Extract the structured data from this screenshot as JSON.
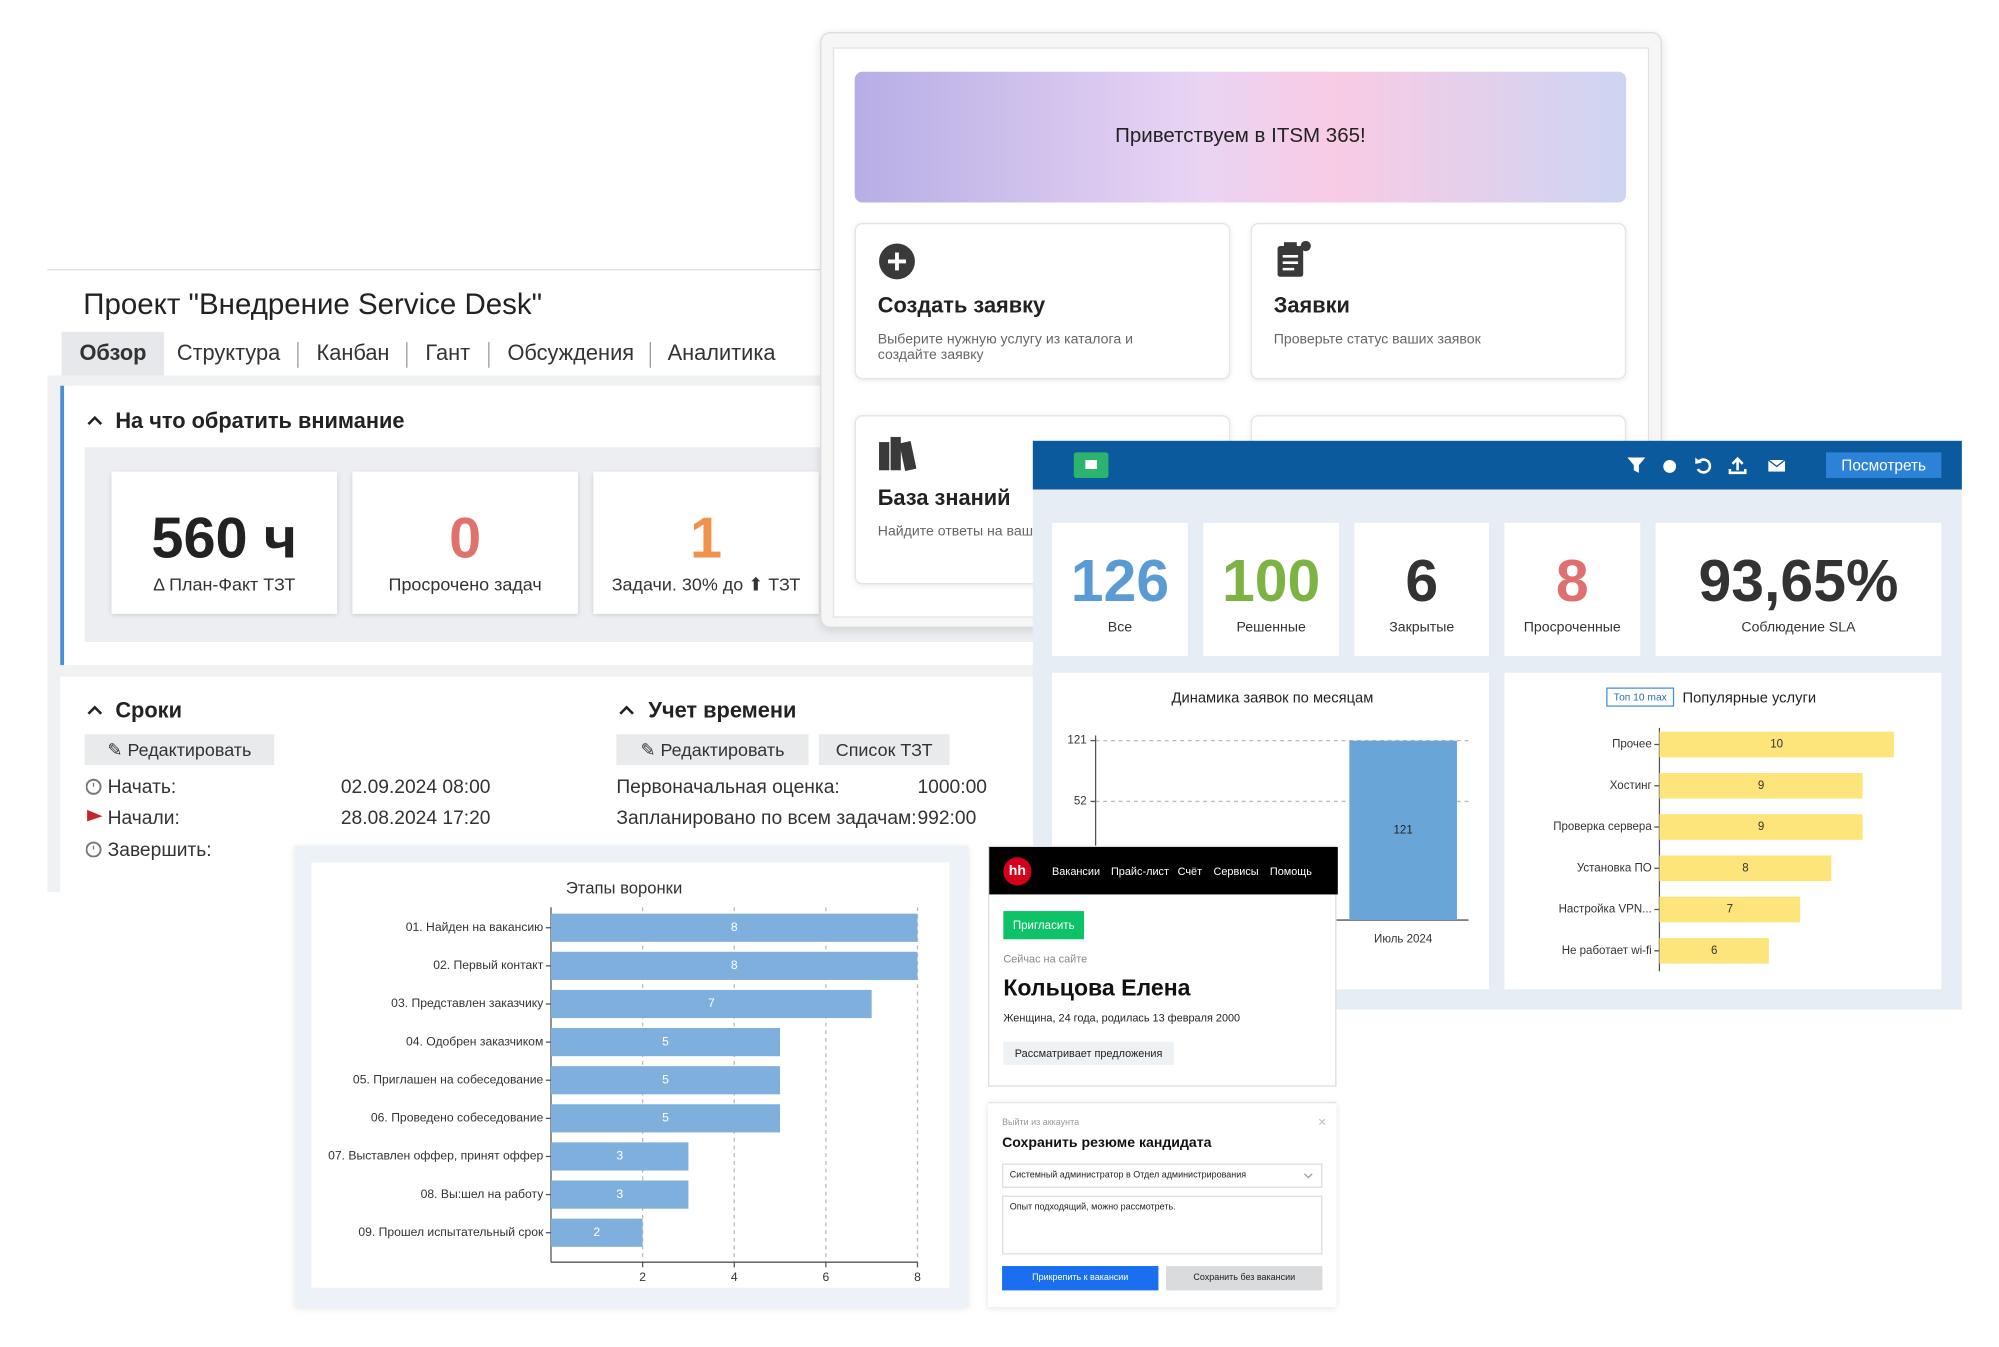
{
  "project": {
    "title": "Проект \"Внедрение Service Desk\"",
    "tabs": [
      "Обзор",
      "Структура",
      "Канбан",
      "Гант",
      "Обсуждения",
      "Аналитика"
    ],
    "attention": {
      "title": "На что обратить внимание",
      "cards": [
        {
          "value": "560 ч",
          "label": "Δ План-Факт ТЗТ"
        },
        {
          "value": "0",
          "label": "Просрочено задач"
        },
        {
          "value": "1",
          "label": "Задачи. 30% до ⬆ ТЗТ"
        }
      ]
    },
    "deadlines": {
      "title": "Сроки",
      "button": "Редактировать",
      "rows": [
        {
          "label": "Начать:",
          "value": "02.09.2024 08:00"
        },
        {
          "label": "Начали:",
          "value": "28.08.2024 17:20"
        },
        {
          "label": "Завершить:"
        }
      ]
    },
    "time": {
      "title": "Учет времени",
      "buttons": [
        "Редактировать",
        "Список ТЗТ"
      ],
      "rows": [
        {
          "label": "Первоначальная оценка:",
          "value": "1000:00"
        },
        {
          "label": "Запланировано по всем задачам:",
          "value": "992:00"
        }
      ]
    }
  },
  "itsm": {
    "banner": "Приветствуем в ITSM 365!",
    "cards": [
      {
        "title": "Создать заявку",
        "description": "Выберите нужную услугу из каталога и создайте заявку"
      },
      {
        "title": "Заявки",
        "description": "Проверьте статус ваших заявок"
      },
      {
        "title": "База знаний",
        "description": "Найдите ответы на ваш"
      }
    ]
  },
  "dashboard": {
    "view_button": "Посмотреть",
    "kpis": [
      {
        "value": "126",
        "label": "Все"
      },
      {
        "value": "100",
        "label": "Решенные"
      },
      {
        "value": "6",
        "label": "Закрытые"
      },
      {
        "value": "8",
        "label": "Просроченные"
      },
      {
        "value": "93,65%",
        "label": "Соблюдение SLA"
      }
    ]
  },
  "hh": {
    "logo": "hh",
    "nav": [
      "Вакансии",
      "Прайс-лист",
      "Счёт",
      "Сервисы",
      "Помощь"
    ],
    "invite_button": "Пригласить",
    "status": "Сейчас на сайте",
    "name": "Кольцова Елена",
    "details": "Женщина, 24 года, родилась 13 февраля 2000",
    "tag": "Рассматривает предложения"
  },
  "dialog": {
    "logout": "Выйти из аккаунта",
    "title": "Сохранить резюме кандидата",
    "select": "Системный администратор в Отдел администрирования",
    "comment": "Опыт подходящий, можно рассмотреть.",
    "buttons": [
      "Прикрепить к вакансии",
      "Сохранить без вакансии"
    ]
  },
  "chart_data": [
    {
      "type": "bar",
      "title": "Динамика заявок по месяцам",
      "categories": [
        "Июль 2024"
      ],
      "values": [
        121
      ],
      "ylim": [
        10,
        121
      ],
      "yticks": [
        52,
        121
      ],
      "log_scale": true,
      "grid": true,
      "color": "#6aa5d8"
    },
    {
      "type": "barh",
      "title": "Популярные услуги",
      "badge": "Топ 10 max",
      "categories": [
        "Прочее",
        "Хостинг",
        "Проверка сервера",
        "Установка ПО",
        "Настройка VPN...",
        "Не работает wi-fi"
      ],
      "values": [
        10,
        9,
        9,
        8,
        7,
        6
      ],
      "xlim": [
        2.5,
        10
      ],
      "color": "#fde57c"
    },
    {
      "type": "barh",
      "title": "Этапы воронки",
      "categories": [
        "01. Найден на вакансию",
        "02. Первый контакт",
        "03. Представлен заказчику",
        "04. Одобрен заказчиком",
        "05. Приглашен на собеседование",
        "06. Проведено собеседование",
        "07. Выставлен оффер, принят оффер",
        "08. Вы:шел на работу",
        "09. Прошел испытательный срок"
      ],
      "values": [
        8,
        8,
        7,
        5,
        5,
        5,
        3,
        3,
        2
      ],
      "xlim": [
        0,
        8
      ],
      "xticks": [
        2,
        4,
        6,
        8
      ],
      "grid": true,
      "color": "#7fb0dd"
    }
  ]
}
